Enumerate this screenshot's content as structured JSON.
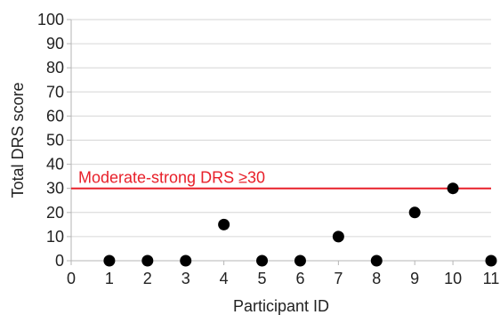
{
  "chart_data": {
    "type": "scatter",
    "xlabel": "Participant ID",
    "ylabel": "Total DRS score",
    "xlim": [
      0,
      11
    ],
    "ylim": [
      0,
      100
    ],
    "x_ticks": [
      0,
      1,
      2,
      3,
      4,
      5,
      6,
      7,
      8,
      9,
      10,
      11
    ],
    "y_ticks": [
      0,
      10,
      20,
      30,
      40,
      50,
      60,
      70,
      80,
      90,
      100
    ],
    "grid": true,
    "points": [
      {
        "x": 1,
        "y": 0
      },
      {
        "x": 2,
        "y": 0
      },
      {
        "x": 3,
        "y": 0
      },
      {
        "x": 4,
        "y": 15
      },
      {
        "x": 5,
        "y": 0
      },
      {
        "x": 6,
        "y": 0
      },
      {
        "x": 7,
        "y": 10
      },
      {
        "x": 8,
        "y": 0
      },
      {
        "x": 9,
        "y": 20
      },
      {
        "x": 10,
        "y": 30
      },
      {
        "x": 11,
        "y": 0
      }
    ],
    "reference_line": {
      "y": 30,
      "label": "Moderate-strong DRS ≥30",
      "color": "#e8202a"
    },
    "marker_color": "#000000"
  }
}
